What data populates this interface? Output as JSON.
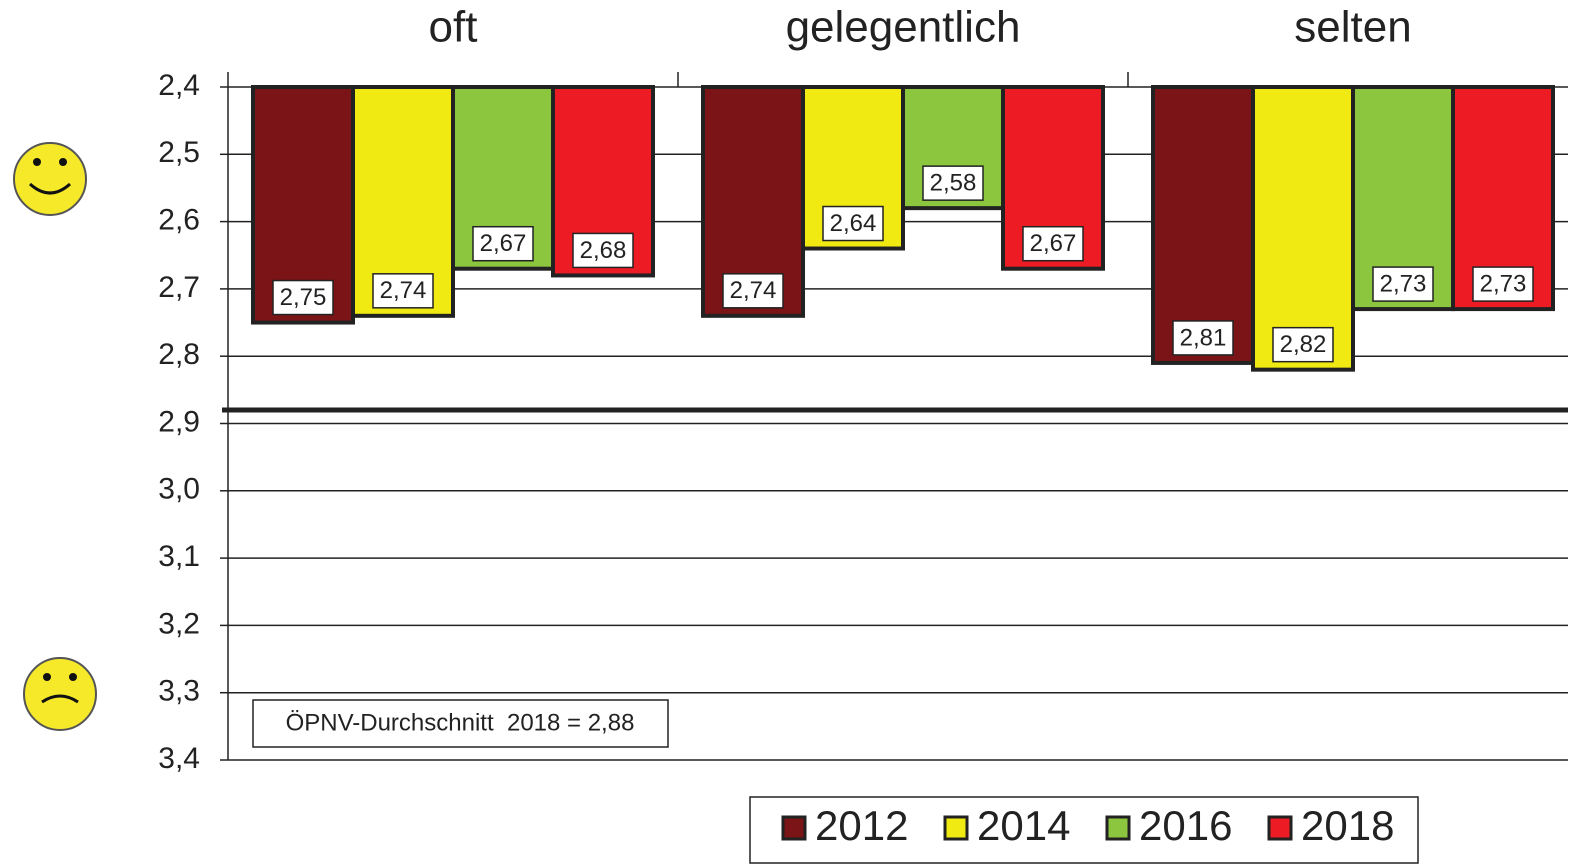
{
  "chart_data": {
    "type": "bar",
    "categories": [
      "oft",
      "gelegentlich",
      "selten"
    ],
    "series": [
      {
        "name": "2012",
        "color": "#7b1416",
        "values": [
          2.75,
          2.74,
          2.81
        ],
        "value_labels": [
          "2,75",
          "2,74",
          "2,81"
        ]
      },
      {
        "name": "2014",
        "color": "#f0e912",
        "values": [
          2.74,
          2.64,
          2.82
        ],
        "value_labels": [
          "2,74",
          "2,64",
          "2,82"
        ]
      },
      {
        "name": "2016",
        "color": "#8cc63f",
        "values": [
          2.67,
          2.58,
          2.73
        ],
        "value_labels": [
          "2,67",
          "2,58",
          "2,73"
        ]
      },
      {
        "name": "2018",
        "color": "#ed1c24",
        "values": [
          2.68,
          2.67,
          2.73
        ],
        "value_labels": [
          "2,68",
          "2,67",
          "2,73"
        ]
      }
    ],
    "ylim": [
      2.4,
      3.4
    ],
    "y_inverted": true,
    "yticks": [
      {
        "value": 2.4,
        "label": "2,4"
      },
      {
        "value": 2.5,
        "label": "2,5"
      },
      {
        "value": 2.6,
        "label": "2,6"
      },
      {
        "value": 2.7,
        "label": "2,7"
      },
      {
        "value": 2.8,
        "label": "2,8"
      },
      {
        "value": 2.9,
        "label": "2,9"
      },
      {
        "value": 3.0,
        "label": "3,0"
      },
      {
        "value": 3.1,
        "label": "3,1"
      },
      {
        "value": 3.2,
        "label": "3,2"
      },
      {
        "value": 3.3,
        "label": "3,3"
      },
      {
        "value": 3.4,
        "label": "3,4"
      }
    ],
    "grid": true,
    "legend": "bottom",
    "reference_line": {
      "value": 2.88,
      "label": "ÖPNV-Durchschnitt  2018 = 2,88"
    }
  }
}
